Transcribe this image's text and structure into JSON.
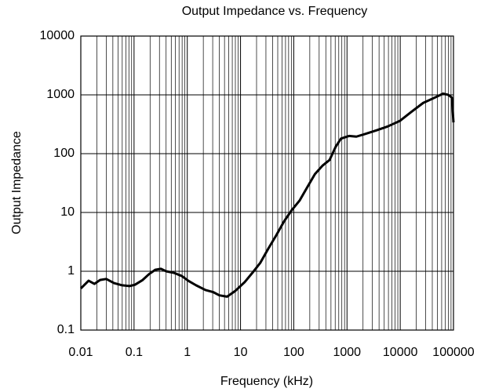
{
  "chart_data": {
    "type": "line",
    "title": "Output Impedance vs. Frequency",
    "x_label": "Frequency (kHz)",
    "y_label": "Output Impedance",
    "x_log": true,
    "y_log": true,
    "grid": true,
    "x_minor_grid": true,
    "xlim": [
      0.01,
      100000
    ],
    "xticks": [
      0.01,
      0.1,
      1,
      10,
      100,
      1000,
      10000,
      100000
    ],
    "ylim": [
      0.1,
      10000
    ],
    "yticks": [
      0.1,
      1,
      10,
      100,
      1000,
      10000
    ],
    "series": [
      {
        "name": "Output Impedance",
        "color": "#000000",
        "x": [
          0.01,
          0.014,
          0.018,
          0.023,
          0.03,
          0.042,
          0.058,
          0.082,
          0.104,
          0.145,
          0.19,
          0.25,
          0.32,
          0.4,
          0.56,
          0.79,
          1.04,
          1.45,
          2.2,
          3.1,
          4,
          5.6,
          7.9,
          11.9,
          16.7,
          23.6,
          33,
          47,
          66,
          92,
          129,
          180,
          250,
          350,
          470,
          610,
          770,
          1090,
          1500,
          2150,
          3600,
          5800,
          9800,
          16000,
          27000,
          46000,
          64000,
          80000,
          93000,
          100000
        ],
        "values": [
          0.51,
          0.69,
          0.61,
          0.71,
          0.74,
          0.63,
          0.58,
          0.56,
          0.59,
          0.71,
          0.89,
          1.06,
          1.1,
          1.0,
          0.94,
          0.83,
          0.69,
          0.58,
          0.48,
          0.44,
          0.39,
          0.37,
          0.46,
          0.65,
          0.94,
          1.4,
          2.4,
          4.1,
          7.1,
          11,
          16,
          27,
          45,
          63,
          78,
          130,
          180,
          200,
          195,
          215,
          250,
          290,
          360,
          510,
          730,
          910,
          1050,
          1000,
          900,
          340
        ]
      }
    ]
  }
}
